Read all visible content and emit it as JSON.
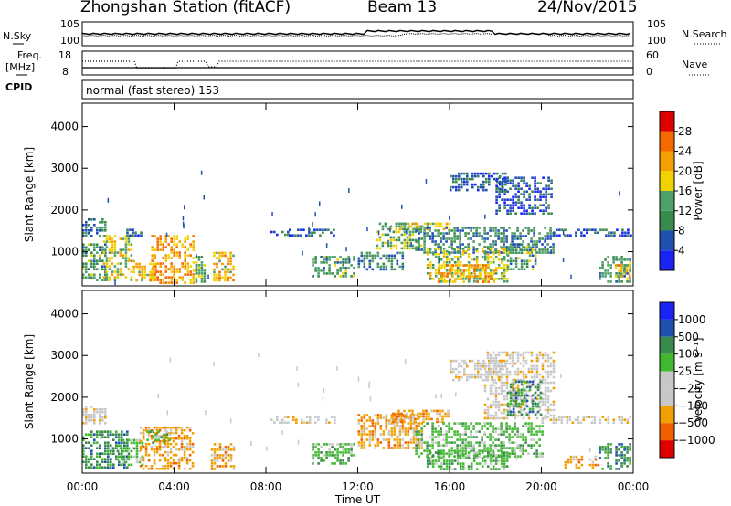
{
  "header": {
    "station": "Zhongshan Station (fitACF)",
    "beam": "Beam 13",
    "date": "24/Nov/2015"
  },
  "status_panels": {
    "nsky": {
      "label": "N.Sky",
      "ticks": [
        "10^5",
        "10^0"
      ]
    },
    "nsearch": {
      "label": "N.Search",
      "ticks": [
        "10^5",
        "10^0"
      ]
    },
    "freq": {
      "label_line1": "Freq.",
      "label_line2": "[MHz]",
      "ticks": [
        "18",
        "8"
      ]
    },
    "nave": {
      "label": "Nave",
      "ticks": [
        "60",
        "0"
      ]
    },
    "cpid": {
      "label": "CPID",
      "value": "normal (fast stereo) 153"
    }
  },
  "colors": {
    "power": [
      "#1a22f5",
      "#1f4fb0",
      "#3a8a4e",
      "#4ea06a",
      "#f0d200",
      "#f5a000",
      "#f56a00",
      "#e00000"
    ],
    "velocity": [
      "#e00000",
      "#f06000",
      "#f0a000",
      "#c8c8c8",
      "#c8c8c8",
      "#40b830",
      "#3a8a4e",
      "#1f4fb0",
      "#1a22f5"
    ]
  },
  "chart_data": [
    {
      "type": "heatmap",
      "title": "Power",
      "xlabel": "Time UT",
      "ylabel": "Slant Range [km]",
      "x_ticks": [
        "00:00",
        "04:00",
        "08:00",
        "12:00",
        "16:00",
        "20:00",
        "00:00"
      ],
      "xlim_hours": [
        0,
        24
      ],
      "y_ticks": [
        1000,
        2000,
        3000,
        4000
      ],
      "ylim": [
        180,
        4560
      ],
      "colorbar": {
        "label": "Power [dB]",
        "ticks": [
          4,
          8,
          12,
          16,
          20,
          24,
          28
        ],
        "range": [
          0,
          32
        ]
      },
      "regions": [
        {
          "t": [
            0.0,
            1.0
          ],
          "r": [
            1400,
            1800
          ],
          "v": 9
        },
        {
          "t": [
            0.0,
            1.0
          ],
          "r": [
            300,
            1200
          ],
          "v": 12
        },
        {
          "t": [
            0.9,
            2.2
          ],
          "r": [
            300,
            1400
          ],
          "v": 18
        },
        {
          "t": [
            1.8,
            2.6
          ],
          "r": [
            1400,
            1550
          ],
          "v": 8
        },
        {
          "t": [
            2.2,
            3.2
          ],
          "r": [
            300,
            800
          ],
          "v": 20
        },
        {
          "t": [
            3.0,
            4.8
          ],
          "r": [
            250,
            1400
          ],
          "v": 22
        },
        {
          "t": [
            4.8,
            5.3
          ],
          "r": [
            250,
            900
          ],
          "v": 14
        },
        {
          "t": [
            5.7,
            6.6
          ],
          "r": [
            300,
            1000
          ],
          "v": 20
        },
        {
          "t": [
            8.2,
            9.0
          ],
          "r": [
            1400,
            1500
          ],
          "v": 6
        },
        {
          "t": [
            9.0,
            11.0
          ],
          "r": [
            1400,
            1550
          ],
          "v": 6
        },
        {
          "t": [
            10.0,
            11.8
          ],
          "r": [
            400,
            900
          ],
          "v": 12
        },
        {
          "t": [
            12.0,
            14.0
          ],
          "r": [
            600,
            1000
          ],
          "v": 10
        },
        {
          "t": [
            12.8,
            14.8
          ],
          "r": [
            1100,
            1700
          ],
          "v": 14
        },
        {
          "t": [
            13.8,
            16.0
          ],
          "r": [
            1550,
            1700
          ],
          "v": 18
        },
        {
          "t": [
            14.5,
            20.5
          ],
          "r": [
            1000,
            1600
          ],
          "v": 10
        },
        {
          "t": [
            15.0,
            18.5
          ],
          "r": [
            300,
            1100
          ],
          "v": 16
        },
        {
          "t": [
            15.5,
            18.0
          ],
          "r": [
            300,
            700
          ],
          "v": 22
        },
        {
          "t": [
            16.0,
            18.5
          ],
          "r": [
            2500,
            2900
          ],
          "v": 7
        },
        {
          "t": [
            18.0,
            20.5
          ],
          "r": [
            1900,
            2800
          ],
          "v": 6
        },
        {
          "t": [
            18.5,
            19.8
          ],
          "r": [
            600,
            1200
          ],
          "v": 12
        },
        {
          "t": [
            20.5,
            23.9
          ],
          "r": [
            1400,
            1550
          ],
          "v": 6
        },
        {
          "t": [
            22.5,
            23.9
          ],
          "r": [
            300,
            900
          ],
          "v": 12
        },
        {
          "t": [
            23.2,
            23.9
          ],
          "r": [
            400,
            700
          ],
          "v": 20
        }
      ]
    },
    {
      "type": "heatmap",
      "title": "Velocity",
      "xlabel": "Time UT",
      "ylabel": "Slant Range [km]",
      "x_ticks": [
        "00:00",
        "04:00",
        "08:00",
        "12:00",
        "16:00",
        "20:00",
        "00:00"
      ],
      "xlim_hours": [
        0,
        24
      ],
      "y_ticks": [
        1000,
        2000,
        3000,
        4000
      ],
      "ylim": [
        180,
        4560
      ],
      "colorbar": {
        "label": "Velocity [m s⁻¹]",
        "ticks": [
          "1000",
          "500",
          "100",
          "25",
          "−25",
          "−100",
          "−500",
          "−1000"
        ]
      },
      "regions": [
        {
          "t": [
            0.0,
            1.0
          ],
          "r": [
            1400,
            1800
          ],
          "c": 3
        },
        {
          "t": [
            0.0,
            2.0
          ],
          "r": [
            300,
            1200
          ],
          "c": 6
        },
        {
          "t": [
            1.5,
            2.6
          ],
          "r": [
            400,
            1000
          ],
          "c": 5
        },
        {
          "t": [
            2.5,
            4.8
          ],
          "r": [
            300,
            1300
          ],
          "c": 2
        },
        {
          "t": [
            2.8,
            3.8
          ],
          "r": [
            900,
            1200
          ],
          "c": 5
        },
        {
          "t": [
            5.6,
            6.6
          ],
          "r": [
            300,
            900
          ],
          "c": 2
        },
        {
          "t": [
            8.2,
            11.0
          ],
          "r": [
            1400,
            1550
          ],
          "c": 3
        },
        {
          "t": [
            10.0,
            11.8
          ],
          "r": [
            400,
            900
          ],
          "c": 5
        },
        {
          "t": [
            12.0,
            14.8
          ],
          "r": [
            800,
            1600
          ],
          "c": 2
        },
        {
          "t": [
            13.5,
            16.0
          ],
          "r": [
            1400,
            1700
          ],
          "c": 2
        },
        {
          "t": [
            14.5,
            20.0
          ],
          "r": [
            600,
            1400
          ],
          "c": 5
        },
        {
          "t": [
            15.0,
            18.5
          ],
          "r": [
            300,
            700
          ],
          "c": 5
        },
        {
          "t": [
            16.0,
            18.5
          ],
          "r": [
            2400,
            2900
          ],
          "c": 3
        },
        {
          "t": [
            17.5,
            20.5
          ],
          "r": [
            1500,
            3100
          ],
          "c": 3
        },
        {
          "t": [
            18.5,
            20.0
          ],
          "r": [
            1600,
            2400
          ],
          "c": 6
        },
        {
          "t": [
            20.0,
            23.9
          ],
          "r": [
            1400,
            1550
          ],
          "c": 3
        },
        {
          "t": [
            22.5,
            23.9
          ],
          "r": [
            300,
            900
          ],
          "c": 6
        },
        {
          "t": [
            21.0,
            22.5
          ],
          "r": [
            300,
            600
          ],
          "c": 2
        }
      ]
    }
  ]
}
